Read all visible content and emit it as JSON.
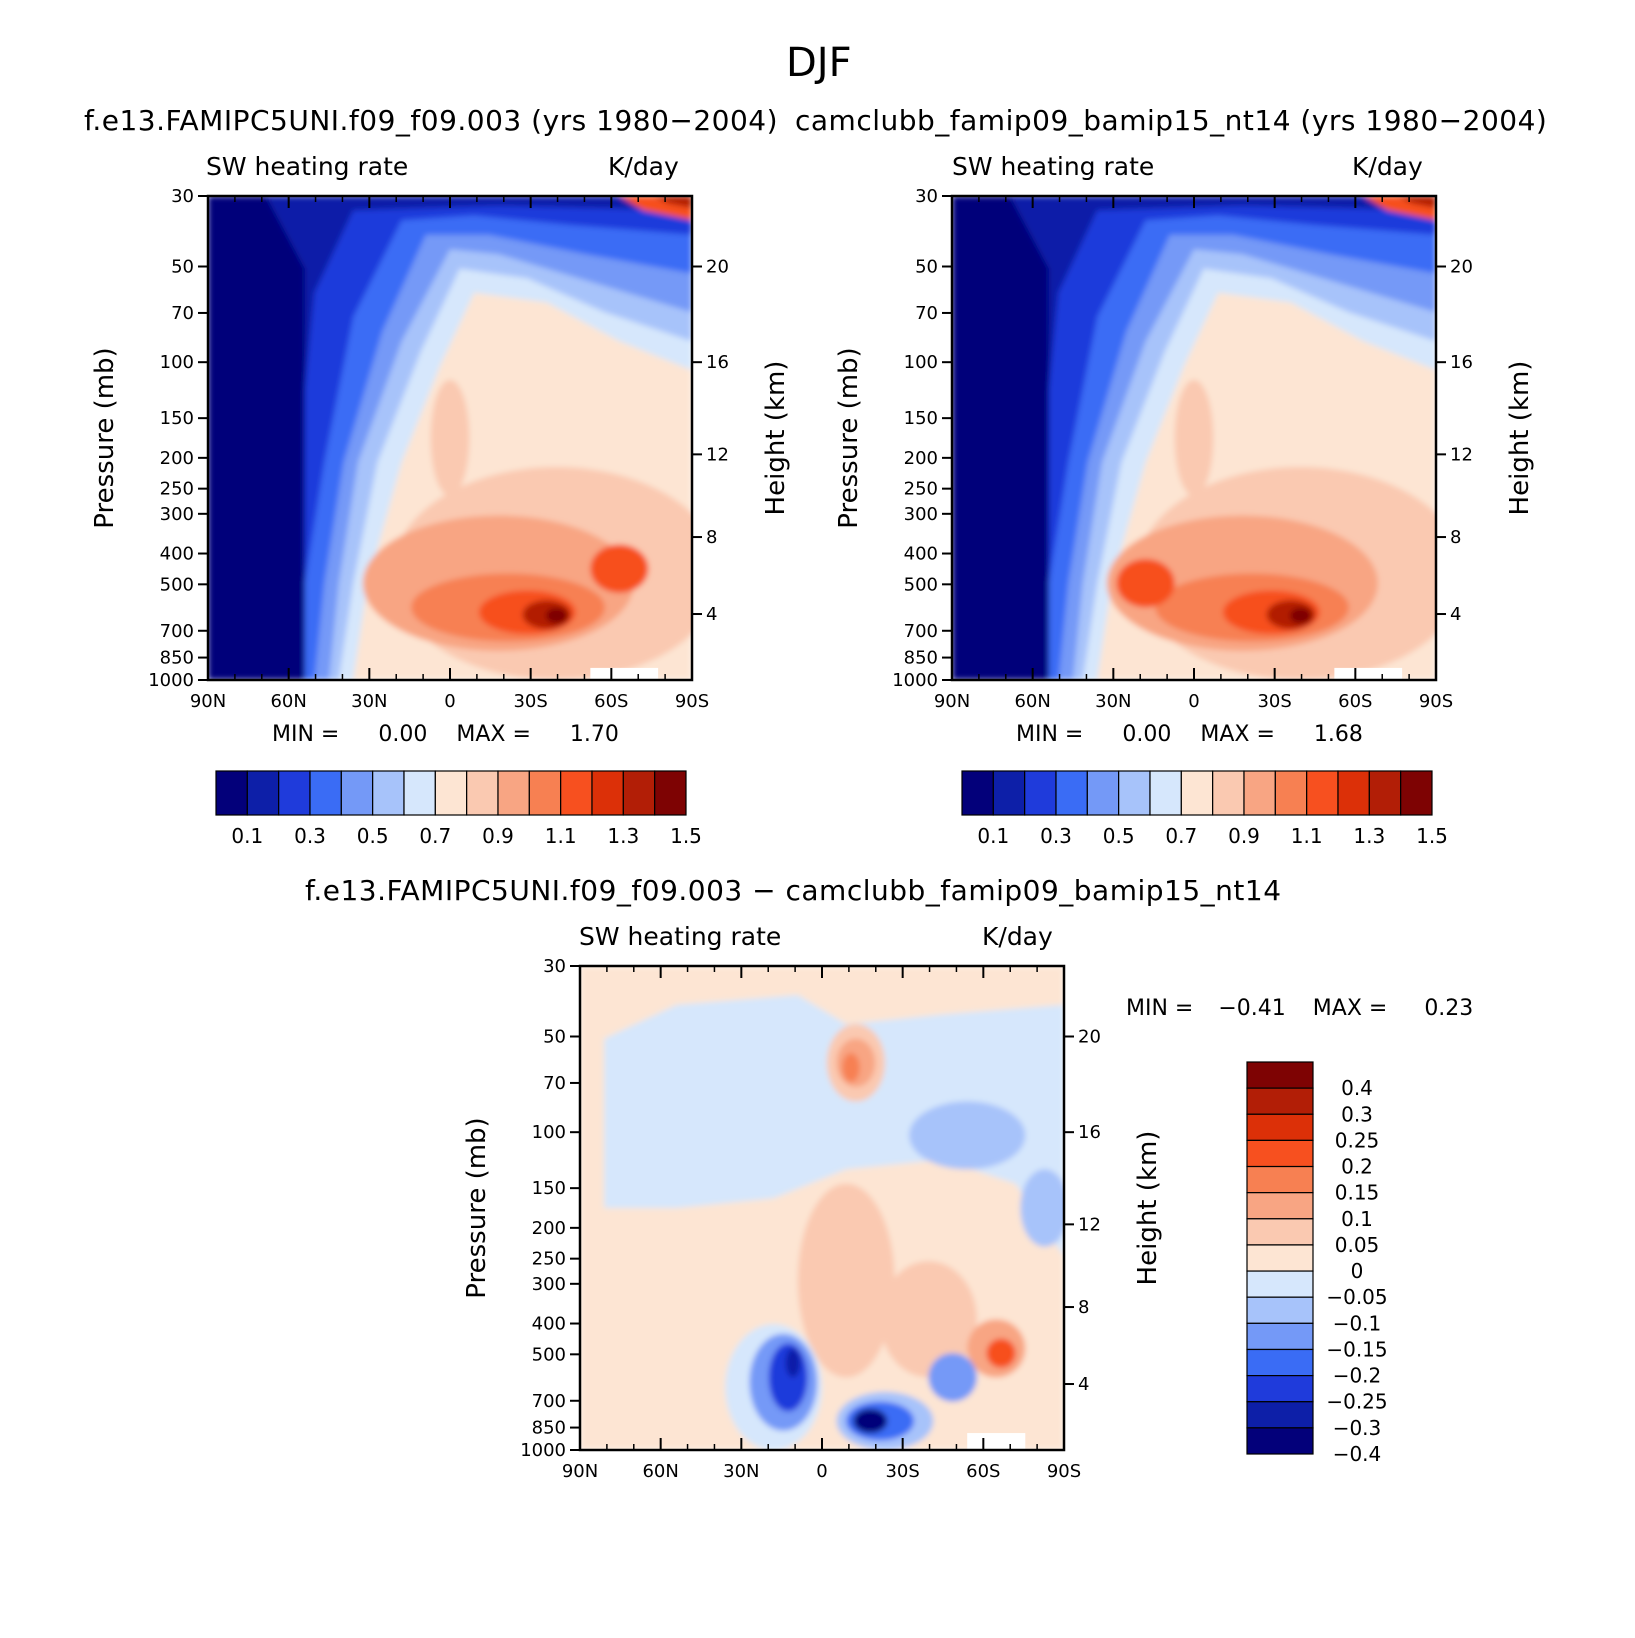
{
  "figure": {
    "title": "DJF"
  },
  "panels": [
    {
      "id": "left",
      "title": "f.e13.FAMIPC5UNI.f09_f09.003 (yrs 1980−2004)",
      "left_label": "SW heating rate",
      "right_label": "K/day",
      "ylabel": "Pressure (mb)",
      "ylabel_right": "Height (km)",
      "stats": {
        "min_label": "MIN =",
        "min": "0.00",
        "max_label": "MAX =",
        "max": "1.70"
      }
    },
    {
      "id": "right",
      "title": "camclubb_famip09_bamip15_nt14 (yrs 1980−2004)",
      "left_label": "SW heating rate",
      "right_label": "K/day",
      "ylabel": "Pressure (mb)",
      "ylabel_right": "Height (km)",
      "stats": {
        "min_label": "MIN =",
        "min": "0.00",
        "max_label": "MAX =",
        "max": "1.68"
      }
    },
    {
      "id": "diff",
      "title": "f.e13.FAMIPC5UNI.f09_f09.003 − camclubb_famip09_bamip15_nt14",
      "left_label": "SW heating rate",
      "right_label": "K/day",
      "ylabel": "Pressure (mb)",
      "ylabel_right": "Height (km)",
      "stats": {
        "min_label": "MIN =",
        "min": "−0.41",
        "max_label": "MAX =",
        "max": "0.23"
      }
    }
  ],
  "chart_data": [
    {
      "type": "heatmap",
      "title": "f.e13.FAMIPC5UNI.f09_f09.003 (yrs 1980−2004)",
      "variable": "SW heating rate",
      "units": "K/day",
      "xlabel": "",
      "ylabel": "Pressure (mb)",
      "ylabel_right": "Height (km)",
      "x_ticks": [
        "90N",
        "60N",
        "30N",
        "0",
        "30S",
        "60S",
        "90S"
      ],
      "y_ticks": [
        30,
        50,
        70,
        100,
        150,
        200,
        250,
        300,
        400,
        500,
        700,
        850,
        1000
      ],
      "y_ticks_right": [
        20,
        16,
        12,
        8,
        4
      ],
      "ylim": [
        1000,
        30
      ],
      "y_scale": "log",
      "min": 0.0,
      "max": 1.7,
      "colorbar_levels": [
        "0.1",
        "0.3",
        "0.5",
        "0.7",
        "0.9",
        "1.1",
        "1.3",
        "1.5"
      ],
      "colorbar_colors": [
        "#03007a",
        "#0d1fa8",
        "#1f3bdb",
        "#3a6cf5",
        "#7499f7",
        "#a7c3fa",
        "#d6e7fc",
        "#fde5d3",
        "#fac9b1",
        "#f8a583",
        "#f78052",
        "#f7501f",
        "#dc3008",
        "#b21e06",
        "#7e0303"
      ],
      "colorbar_orientation": "horizontal"
    },
    {
      "type": "heatmap",
      "title": "camclubb_famip09_bamip15_nt14 (yrs 1980−2004)",
      "variable": "SW heating rate",
      "units": "K/day",
      "xlabel": "",
      "ylabel": "Pressure (mb)",
      "ylabel_right": "Height (km)",
      "x_ticks": [
        "90N",
        "60N",
        "30N",
        "0",
        "30S",
        "60S",
        "90S"
      ],
      "y_ticks": [
        30,
        50,
        70,
        100,
        150,
        200,
        250,
        300,
        400,
        500,
        700,
        850,
        1000
      ],
      "y_ticks_right": [
        20,
        16,
        12,
        8,
        4
      ],
      "ylim": [
        1000,
        30
      ],
      "y_scale": "log",
      "min": 0.0,
      "max": 1.68,
      "colorbar_levels": [
        "0.1",
        "0.3",
        "0.5",
        "0.7",
        "0.9",
        "1.1",
        "1.3",
        "1.5"
      ],
      "colorbar_colors": [
        "#03007a",
        "#0d1fa8",
        "#1f3bdb",
        "#3a6cf5",
        "#7499f7",
        "#a7c3fa",
        "#d6e7fc",
        "#fde5d3",
        "#fac9b1",
        "#f8a583",
        "#f78052",
        "#f7501f",
        "#dc3008",
        "#b21e06",
        "#7e0303"
      ],
      "colorbar_orientation": "horizontal"
    },
    {
      "type": "heatmap",
      "title": "f.e13.FAMIPC5UNI.f09_f09.003 − camclubb_famip09_bamip15_nt14",
      "variable": "SW heating rate",
      "units": "K/day",
      "xlabel": "",
      "ylabel": "Pressure (mb)",
      "ylabel_right": "Height (km)",
      "x_ticks": [
        "90N",
        "60N",
        "30N",
        "0",
        "30S",
        "60S",
        "90S"
      ],
      "y_ticks": [
        30,
        50,
        70,
        100,
        150,
        200,
        250,
        300,
        400,
        500,
        700,
        850,
        1000
      ],
      "y_ticks_right": [
        20,
        16,
        12,
        8,
        4
      ],
      "ylim": [
        1000,
        30
      ],
      "y_scale": "log",
      "min": -0.41,
      "max": 0.23,
      "colorbar_levels": [
        "0.4",
        "0.3",
        "0.25",
        "0.2",
        "0.15",
        "0.1",
        "0.05",
        "0",
        "−0.05",
        "−0.1",
        "−0.15",
        "−0.2",
        "−0.25",
        "−0.3",
        "−0.4"
      ],
      "colorbar_colors": [
        "#7e0303",
        "#b21e06",
        "#dc3008",
        "#f7501f",
        "#f78052",
        "#f8a583",
        "#fac9b1",
        "#fde5d3",
        "#d6e7fc",
        "#a7c3fa",
        "#7499f7",
        "#3a6cf5",
        "#1f3bdb",
        "#0d1fa8",
        "#03007a"
      ],
      "colorbar_orientation": "vertical"
    }
  ]
}
